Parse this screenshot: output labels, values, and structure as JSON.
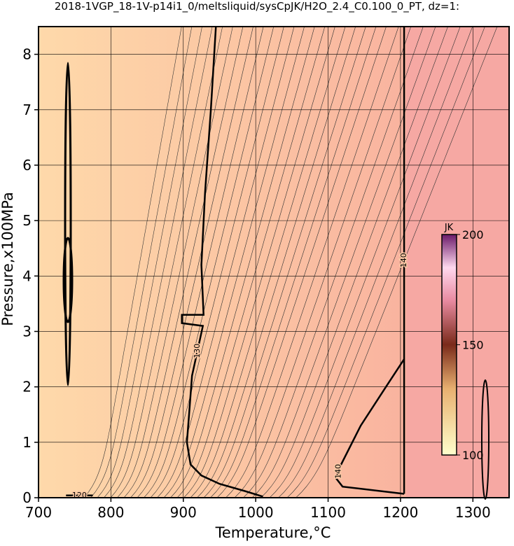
{
  "chart_data": {
    "type": "contour",
    "title": "2018-1VGP_18-1V-p14i1_0/meltsliquid/sysCpJK/H2O_2.4_C0.100_0_PT, dz=1:",
    "x_label": "Temperature,°C",
    "y_label": "Pressure,x100MPa",
    "xlim": [
      700,
      1350
    ],
    "ylim": [
      0,
      8.5
    ],
    "xticks": [
      700,
      800,
      900,
      1000,
      1100,
      1200,
      1300
    ],
    "yticks": [
      0,
      1,
      2,
      3,
      4,
      5,
      6,
      7,
      8
    ],
    "grid": true,
    "series": [
      {
        "name": "130",
        "color": "#000000",
        "x": [
          945,
          938,
          930,
          925,
          928,
          898,
          898,
          927,
          912,
          908,
          905,
          910,
          925,
          950,
          985,
          1010
        ],
        "y": [
          8.5,
          7,
          5.5,
          4.2,
          3.3,
          3.3,
          3.15,
          3.1,
          2.2,
          1.5,
          1.0,
          0.6,
          0.4,
          0.25,
          0.12,
          0.02
        ]
      },
      {
        "name": "140",
        "color": "#000000",
        "x": [
          1205,
          1205,
          null,
          1205,
          1180,
          1145,
          1118,
          1111,
          1120,
          1205
        ],
        "y": [
          8.5,
          0.07,
          null,
          2.5,
          2.0,
          1.3,
          0.6,
          0.35,
          0.2,
          0.07
        ]
      },
      {
        "name": "120",
        "color": "#000000",
        "x": [
          738,
          775
        ],
        "y": [
          0.04,
          0.04
        ]
      }
    ],
    "colorbar": {
      "label": "JK",
      "lim": [
        100,
        200
      ],
      "ticks": [
        100,
        150,
        200
      ]
    }
  }
}
